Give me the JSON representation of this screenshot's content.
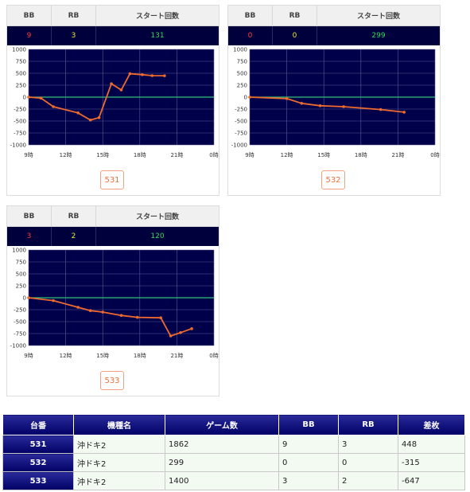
{
  "x_ticks": [
    "9時",
    "12時",
    "15時",
    "18時",
    "21時",
    "0時"
  ],
  "y_ticks": [
    "1000",
    "750",
    "500",
    "250",
    "0",
    "-250",
    "-500",
    "-750",
    "-1000"
  ],
  "colors": {
    "series": "#ee6a2f",
    "zero_line": "#2fbf7a",
    "plot_bg": "#00004a"
  },
  "cards": [
    {
      "header": {
        "bb": "BB",
        "rb": "RB",
        "start": "スタート回数"
      },
      "bb": "9",
      "rb": "3",
      "start": "131",
      "machine": "531"
    },
    {
      "header": {
        "bb": "BB",
        "rb": "RB",
        "start": "スタート回数"
      },
      "bb": "0",
      "rb": "0",
      "start": "299",
      "machine": "532"
    },
    {
      "header": {
        "bb": "BB",
        "rb": "RB",
        "start": "スタート回数"
      },
      "bb": "3",
      "rb": "2",
      "start": "120",
      "machine": "533"
    }
  ],
  "chart_data": [
    {
      "type": "line",
      "xlim": [
        9,
        24
      ],
      "ylim": [
        -1000,
        1000
      ],
      "grid": true,
      "x": [
        9,
        10,
        11,
        13,
        14,
        14.7,
        15.7,
        16.5,
        17.2,
        18.2,
        19,
        20
      ],
      "y": [
        0,
        -20,
        -200,
        -330,
        -480,
        -430,
        280,
        150,
        490,
        470,
        450,
        448
      ]
    },
    {
      "type": "line",
      "xlim": [
        9,
        24
      ],
      "ylim": [
        -1000,
        1000
      ],
      "grid": true,
      "x": [
        9,
        12,
        13.2,
        14.7,
        16.6,
        19.6,
        21.5
      ],
      "y": [
        0,
        -30,
        -130,
        -180,
        -200,
        -260,
        -315
      ]
    },
    {
      "type": "line",
      "xlim": [
        9,
        24
      ],
      "ylim": [
        -1000,
        1000
      ],
      "grid": true,
      "x": [
        9,
        11,
        13,
        14,
        15,
        16.5,
        17.8,
        19.7,
        20.5,
        21.3,
        22.2
      ],
      "y": [
        0,
        -60,
        -200,
        -270,
        -300,
        -370,
        -410,
        -420,
        -800,
        -730,
        -647
      ]
    }
  ],
  "table": {
    "headers": [
      "台番",
      "機種名",
      "ゲーム数",
      "BB",
      "RB",
      "差枚"
    ],
    "rows": [
      [
        "531",
        "沖ドキ2",
        "1862",
        "9",
        "3",
        "448"
      ],
      [
        "532",
        "沖ドキ2",
        "299",
        "0",
        "0",
        "-315"
      ],
      [
        "533",
        "沖ドキ2",
        "1400",
        "3",
        "2",
        "-647"
      ]
    ]
  }
}
